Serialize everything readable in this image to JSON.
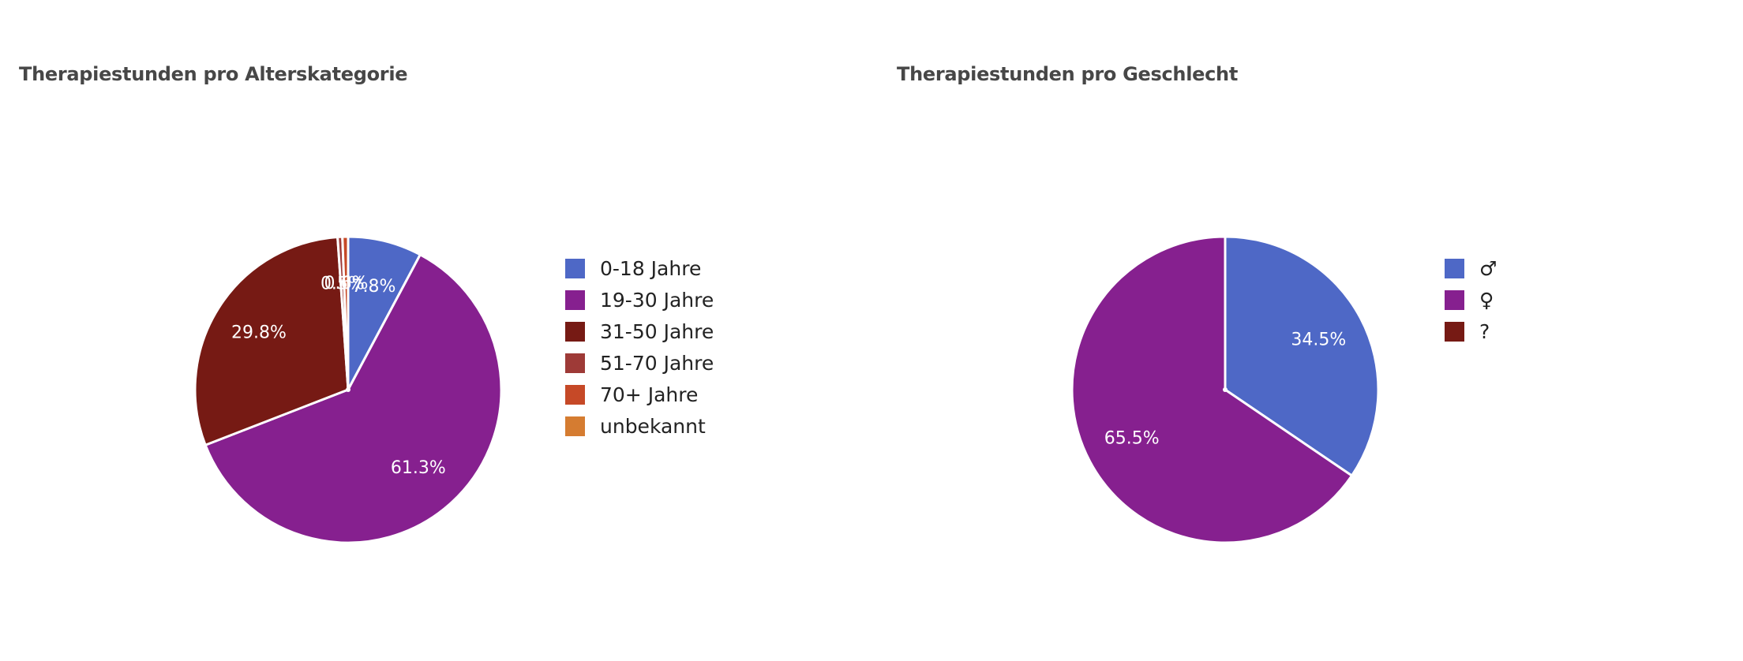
{
  "chart_data": [
    {
      "type": "pie",
      "title": "Therapiestunden pro Alterskategorie",
      "legend": "right",
      "slices": [
        {
          "label": "0-18 Jahre",
          "value": 7.8,
          "display": "7.8%",
          "color": "#4e68c6"
        },
        {
          "label": "19-30 Jahre",
          "value": 61.3,
          "display": "61.3%",
          "color": "#86208f"
        },
        {
          "label": "31-50 Jahre",
          "value": 29.8,
          "display": "29.8%",
          "color": "#761a14"
        },
        {
          "label": "51-70 Jahre",
          "value": 0.5,
          "display": "0.5%",
          "color": "#9e3a37"
        },
        {
          "label": "70+ Jahre",
          "value": 0.6,
          "display": "0.6%",
          "color": "#c64927"
        },
        {
          "label": "unbekannt",
          "value": 0.0,
          "display": "",
          "color": "#d57c31"
        }
      ]
    },
    {
      "type": "pie",
      "title": "Therapiestunden pro Geschlecht",
      "legend": "right",
      "slices": [
        {
          "label": "♂",
          "value": 34.5,
          "display": "34.5%",
          "color": "#4e68c6"
        },
        {
          "label": "♀",
          "value": 65.5,
          "display": "65.5%",
          "color": "#86208f"
        },
        {
          "label": "?",
          "value": 0.0,
          "display": "",
          "color": "#761a14"
        }
      ]
    }
  ]
}
